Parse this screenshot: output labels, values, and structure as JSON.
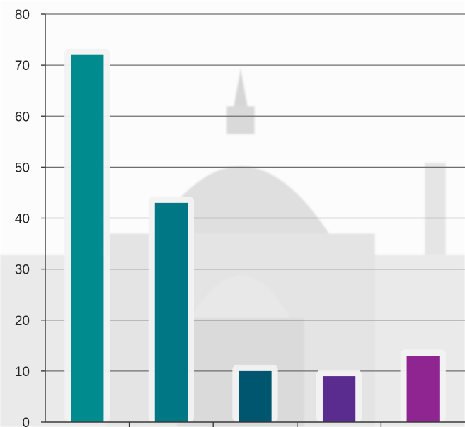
{
  "chart_data": {
    "type": "bar",
    "categories": [
      "",
      "",
      "",
      "",
      ""
    ],
    "values": [
      72,
      43,
      10,
      9,
      13
    ],
    "colors": [
      "#008b8e",
      "#007785",
      "#00566e",
      "#5b2c90",
      "#8e2590"
    ],
    "title": "",
    "xlabel": "",
    "ylabel": "",
    "ylim": [
      0,
      80
    ],
    "yticks": [
      "0",
      "10",
      "20",
      "30",
      "40",
      "50",
      "60",
      "70",
      "80"
    ],
    "grid": true,
    "legend": "none",
    "background": "faded grayscale photograph of a domed palace behind the plot"
  }
}
